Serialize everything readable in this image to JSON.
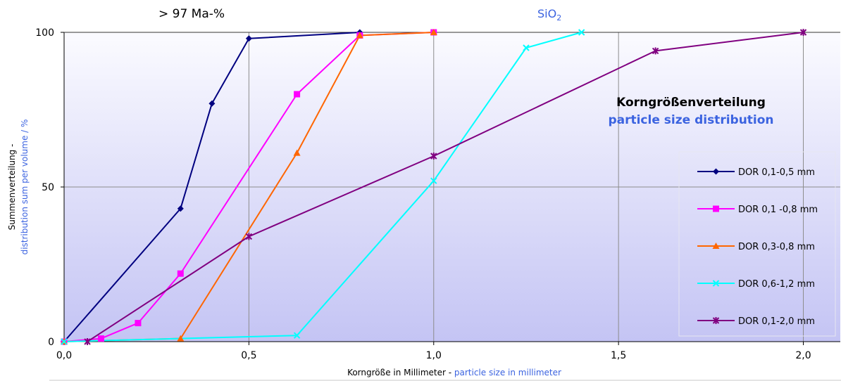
{
  "header": {
    "purity": "> 97 Ma-%",
    "material_base": "SiO",
    "material_sub": "2"
  },
  "chart_title": {
    "line1": "Korngrößenverteilung",
    "line2": "particle size distribution"
  },
  "colors": {
    "blue_text": "#3b63e0",
    "plot_top": "#fbfbff",
    "plot_bottom": "#c4c4f4"
  },
  "chart_data": {
    "type": "line",
    "xlabel_de": "Korngröße in Millimeter - ",
    "xlabel_en": "particle size in millimeter",
    "ylabel_de": "Summenverteilung - ",
    "ylabel_en": "distribution sum per volume / %",
    "xlim": [
      0,
      2.1
    ],
    "ylim": [
      0,
      100
    ],
    "x_ticks": [
      0,
      0.5,
      1.0,
      1.5,
      2.0
    ],
    "x_tick_labels": [
      "0,0",
      "0,5",
      "1,0",
      "1,5",
      "2,0"
    ],
    "y_ticks": [
      0,
      50,
      100
    ],
    "y_tick_labels": [
      "0",
      "50",
      "100"
    ],
    "grid": true,
    "legend_position": "right",
    "series": [
      {
        "name": "DOR 0,1-0,5 mm",
        "color": "#000080",
        "marker": "diamond",
        "x": [
          0,
          0.315,
          0.4,
          0.5,
          0.8
        ],
        "y": [
          0,
          43,
          77,
          98,
          100
        ]
      },
      {
        "name": "DOR 0,1 -0,8 mm",
        "color": "#ff00ff",
        "marker": "square",
        "x": [
          0,
          0.1,
          0.2,
          0.315,
          0.63,
          0.8,
          1.0
        ],
        "y": [
          0,
          1,
          6,
          22,
          80,
          99,
          100
        ]
      },
      {
        "name": "DOR 0,3-0,8 mm",
        "color": "#ff6600",
        "marker": "triangle",
        "x": [
          0,
          0.315,
          0.63,
          0.8,
          1.0
        ],
        "y": [
          0,
          1,
          61,
          99,
          100
        ]
      },
      {
        "name": "DOR 0,6-1,2 mm",
        "color": "#00ffff",
        "marker": "x",
        "x": [
          0,
          0.63,
          1.0,
          1.25,
          1.4
        ],
        "y": [
          0,
          2,
          52,
          95,
          100
        ]
      },
      {
        "name": "DOR 0,1-2,0 mm",
        "color": "#800080",
        "marker": "star",
        "x": [
          0.063,
          0.5,
          1.0,
          1.6,
          2.0
        ],
        "y": [
          0,
          34,
          60,
          94,
          100
        ]
      }
    ]
  }
}
